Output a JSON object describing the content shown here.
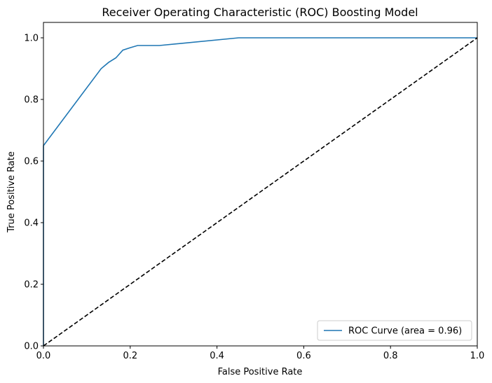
{
  "chart_data": {
    "type": "line",
    "title": "Receiver Operating Characteristic (ROC) Boosting Model",
    "xlabel": "False Positive Rate",
    "ylabel": "True Positive Rate",
    "xlim": [
      0.0,
      1.0
    ],
    "ylim": [
      0.0,
      1.05
    ],
    "x_ticks": [
      "0.0",
      "0.2",
      "0.4",
      "0.6",
      "0.8",
      "1.0"
    ],
    "y_ticks": [
      "0.0",
      "0.2",
      "0.4",
      "0.6",
      "0.8",
      "1.0"
    ],
    "grid": false,
    "legend_position": "lower-right",
    "series": [
      {
        "name": "ROC Curve (area = 0.96)",
        "color": "#1f77b4",
        "style": "solid",
        "x": [
          0.0,
          0.0,
          0.0,
          0.133,
          0.133,
          0.15,
          0.167,
          0.183,
          0.2,
          0.217,
          0.267,
          0.45,
          1.0
        ],
        "y": [
          0.0,
          0.025,
          0.65,
          0.9,
          0.9,
          0.92,
          0.935,
          0.96,
          0.968,
          0.975,
          0.975,
          1.0,
          1.0
        ]
      },
      {
        "color": "#000000",
        "style": "dashed",
        "x": [
          0.0,
          1.0
        ],
        "y": [
          0.0,
          1.0
        ]
      }
    ]
  }
}
